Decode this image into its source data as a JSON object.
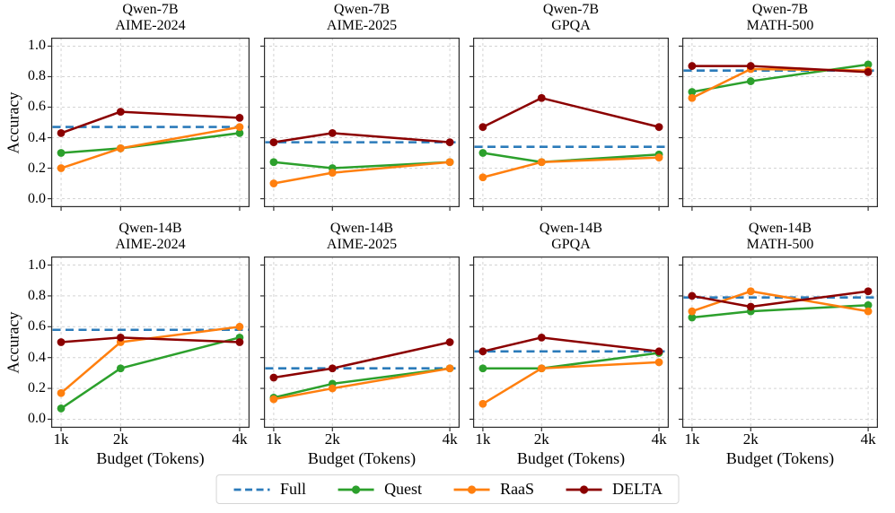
{
  "figure": {
    "ylabel": "Accuracy",
    "xlabel": "Budget (Tokens)",
    "x_tick_labels": [
      "1k",
      "2k",
      "4k"
    ],
    "y_tick_labels": [
      "0.0",
      "0.2",
      "0.4",
      "0.6",
      "0.8",
      "1.0"
    ]
  },
  "legend": {
    "position": "bottom-center",
    "items": [
      {
        "label": "Full",
        "color": "#2b7bba",
        "style": "dashed"
      },
      {
        "label": "Quest",
        "color": "#2ca02c",
        "style": "solid-marker"
      },
      {
        "label": "RaaS",
        "color": "#ff7f0e",
        "style": "solid-marker"
      },
      {
        "label": "DELTA",
        "color": "#8b0000",
        "style": "solid-marker"
      }
    ]
  },
  "chart_data": [
    {
      "type": "line",
      "title_line1": "Qwen-7B",
      "title_line2": "AIME-2024",
      "x": [
        1000,
        2000,
        4000
      ],
      "x_tick_labels": [
        "1k",
        "2k",
        "4k"
      ],
      "ylim": [
        0.0,
        1.0
      ],
      "yticks": [
        0.0,
        0.2,
        0.4,
        0.6,
        0.8,
        1.0
      ],
      "grid": true,
      "full_baseline": 0.47,
      "series": [
        {
          "name": "Quest",
          "values": [
            0.3,
            0.33,
            0.43
          ]
        },
        {
          "name": "RaaS",
          "values": [
            0.2,
            0.33,
            0.47
          ]
        },
        {
          "name": "DELTA",
          "values": [
            0.43,
            0.57,
            0.53
          ]
        }
      ]
    },
    {
      "type": "line",
      "title_line1": "Qwen-7B",
      "title_line2": "AIME-2025",
      "x": [
        1000,
        2000,
        4000
      ],
      "x_tick_labels": [
        "1k",
        "2k",
        "4k"
      ],
      "ylim": [
        0.0,
        1.0
      ],
      "yticks": [
        0.0,
        0.2,
        0.4,
        0.6,
        0.8,
        1.0
      ],
      "grid": true,
      "full_baseline": 0.37,
      "series": [
        {
          "name": "Quest",
          "values": [
            0.24,
            0.2,
            0.24
          ]
        },
        {
          "name": "RaaS",
          "values": [
            0.1,
            0.17,
            0.24
          ]
        },
        {
          "name": "DELTA",
          "values": [
            0.37,
            0.43,
            0.37
          ]
        }
      ]
    },
    {
      "type": "line",
      "title_line1": "Qwen-7B",
      "title_line2": "GPQA",
      "x": [
        1000,
        2000,
        4000
      ],
      "x_tick_labels": [
        "1k",
        "2k",
        "4k"
      ],
      "ylim": [
        0.0,
        1.0
      ],
      "yticks": [
        0.0,
        0.2,
        0.4,
        0.6,
        0.8,
        1.0
      ],
      "grid": true,
      "full_baseline": 0.34,
      "series": [
        {
          "name": "Quest",
          "values": [
            0.3,
            0.24,
            0.29
          ]
        },
        {
          "name": "RaaS",
          "values": [
            0.14,
            0.24,
            0.27
          ]
        },
        {
          "name": "DELTA",
          "values": [
            0.47,
            0.66,
            0.47
          ]
        }
      ]
    },
    {
      "type": "line",
      "title_line1": "Qwen-7B",
      "title_line2": "MATH-500",
      "x": [
        1000,
        2000,
        4000
      ],
      "x_tick_labels": [
        "1k",
        "2k",
        "4k"
      ],
      "ylim": [
        0.0,
        1.0
      ],
      "yticks": [
        0.0,
        0.2,
        0.4,
        0.6,
        0.8,
        1.0
      ],
      "grid": true,
      "full_baseline": 0.84,
      "series": [
        {
          "name": "Quest",
          "values": [
            0.7,
            0.77,
            0.88
          ]
        },
        {
          "name": "RaaS",
          "values": [
            0.66,
            0.85,
            0.84
          ]
        },
        {
          "name": "DELTA",
          "values": [
            0.87,
            0.87,
            0.83
          ]
        }
      ]
    },
    {
      "type": "line",
      "title_line1": "Qwen-14B",
      "title_line2": "AIME-2024",
      "x": [
        1000,
        2000,
        4000
      ],
      "x_tick_labels": [
        "1k",
        "2k",
        "4k"
      ],
      "ylim": [
        0.0,
        1.0
      ],
      "yticks": [
        0.0,
        0.2,
        0.4,
        0.6,
        0.8,
        1.0
      ],
      "grid": true,
      "full_baseline": 0.58,
      "series": [
        {
          "name": "Quest",
          "values": [
            0.07,
            0.33,
            0.53
          ]
        },
        {
          "name": "RaaS",
          "values": [
            0.17,
            0.5,
            0.6
          ]
        },
        {
          "name": "DELTA",
          "values": [
            0.5,
            0.53,
            0.5
          ]
        }
      ]
    },
    {
      "type": "line",
      "title_line1": "Qwen-14B",
      "title_line2": "AIME-2025",
      "x": [
        1000,
        2000,
        4000
      ],
      "x_tick_labels": [
        "1k",
        "2k",
        "4k"
      ],
      "ylim": [
        0.0,
        1.0
      ],
      "yticks": [
        0.0,
        0.2,
        0.4,
        0.6,
        0.8,
        1.0
      ],
      "grid": true,
      "full_baseline": 0.33,
      "series": [
        {
          "name": "Quest",
          "values": [
            0.14,
            0.23,
            0.33
          ]
        },
        {
          "name": "RaaS",
          "values": [
            0.13,
            0.2,
            0.33
          ]
        },
        {
          "name": "DELTA",
          "values": [
            0.27,
            0.33,
            0.5
          ]
        }
      ]
    },
    {
      "type": "line",
      "title_line1": "Qwen-14B",
      "title_line2": "GPQA",
      "x": [
        1000,
        2000,
        4000
      ],
      "x_tick_labels": [
        "1k",
        "2k",
        "4k"
      ],
      "ylim": [
        0.0,
        1.0
      ],
      "yticks": [
        0.0,
        0.2,
        0.4,
        0.6,
        0.8,
        1.0
      ],
      "grid": true,
      "full_baseline": 0.44,
      "series": [
        {
          "name": "Quest",
          "values": [
            0.33,
            0.33,
            0.43
          ]
        },
        {
          "name": "RaaS",
          "values": [
            0.1,
            0.33,
            0.37
          ]
        },
        {
          "name": "DELTA",
          "values": [
            0.44,
            0.53,
            0.44
          ]
        }
      ]
    },
    {
      "type": "line",
      "title_line1": "Qwen-14B",
      "title_line2": "MATH-500",
      "x": [
        1000,
        2000,
        4000
      ],
      "x_tick_labels": [
        "1k",
        "2k",
        "4k"
      ],
      "ylim": [
        0.0,
        1.0
      ],
      "yticks": [
        0.0,
        0.2,
        0.4,
        0.6,
        0.8,
        1.0
      ],
      "grid": true,
      "full_baseline": 0.79,
      "series": [
        {
          "name": "Quest",
          "values": [
            0.66,
            0.7,
            0.74
          ]
        },
        {
          "name": "RaaS",
          "values": [
            0.7,
            0.83,
            0.7
          ]
        },
        {
          "name": "DELTA",
          "values": [
            0.8,
            0.73,
            0.83
          ]
        }
      ]
    }
  ]
}
